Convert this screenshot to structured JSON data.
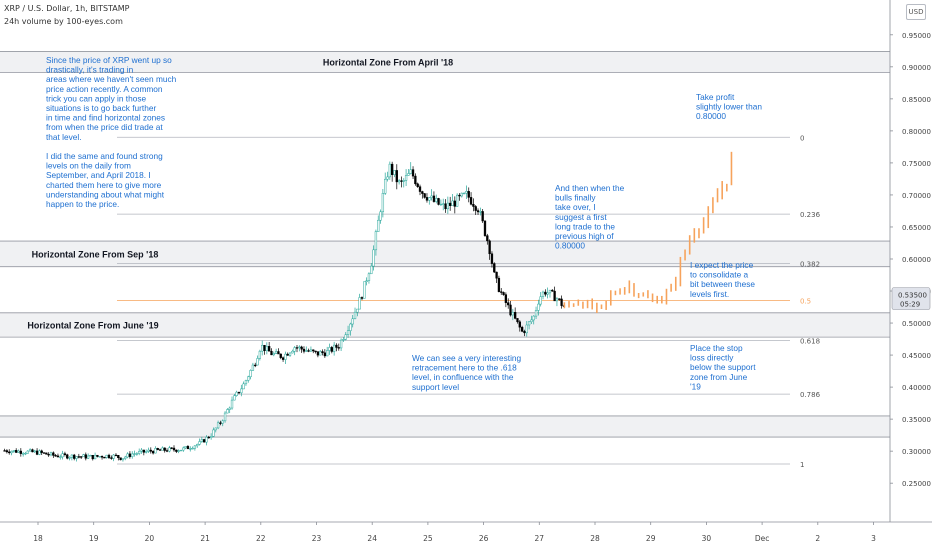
{
  "header": {
    "symbol_line": "XRP / U.S. Dollar, 1h, BITSTAMP",
    "indicator_line": "24h volume by 100-eyes.com",
    "currency_badge": "USD"
  },
  "colors": {
    "up": "#26a69a",
    "down": "#000000",
    "forecast": "#f6a35c",
    "annotation": "#1e6fd0",
    "zone_fill": "#f0f1f3",
    "zone_line": "#9598a1",
    "fib_line": "#b2b5be",
    "fib_half": "#f6a35c"
  },
  "chart_data": {
    "type": "candlestick",
    "x_ticks": [
      "18",
      "19",
      "20",
      "21",
      "22",
      "23",
      "24",
      "25",
      "26",
      "27",
      "28",
      "29",
      "30",
      "Dec",
      "2",
      "3"
    ],
    "y_ticks": [
      "0.25000",
      "0.30000",
      "0.35000",
      "0.40000",
      "0.45000",
      "0.50000",
      "0.55000",
      "0.60000",
      "0.65000",
      "0.70000",
      "0.75000",
      "0.80000",
      "0.85000",
      "0.90000",
      "0.95000"
    ],
    "ylim": [
      0.21,
      0.965
    ],
    "xlim": [
      17.35,
      3.6
    ],
    "current_price_label": "05:29",
    "current_price": 0.535,
    "price_path": [
      [
        17.4,
        0.301
      ],
      [
        18.0,
        0.298
      ],
      [
        18.3,
        0.293
      ],
      [
        18.7,
        0.292
      ],
      [
        19.0,
        0.291
      ],
      [
        19.2,
        0.293
      ],
      [
        19.4,
        0.292
      ],
      [
        19.5,
        0.289
      ],
      [
        19.7,
        0.296
      ],
      [
        20.0,
        0.3
      ],
      [
        20.3,
        0.302
      ],
      [
        20.6,
        0.303
      ],
      [
        20.9,
        0.312
      ],
      [
        21.1,
        0.325
      ],
      [
        21.3,
        0.348
      ],
      [
        21.5,
        0.38
      ],
      [
        21.7,
        0.405
      ],
      [
        21.9,
        0.44
      ],
      [
        22.0,
        0.465
      ],
      [
        22.2,
        0.452
      ],
      [
        22.4,
        0.448
      ],
      [
        22.6,
        0.463
      ],
      [
        22.8,
        0.458
      ],
      [
        23.0,
        0.452
      ],
      [
        23.2,
        0.455
      ],
      [
        23.4,
        0.465
      ],
      [
        23.6,
        0.5
      ],
      [
        23.8,
        0.54
      ],
      [
        24.0,
        0.6
      ],
      [
        24.15,
        0.68
      ],
      [
        24.3,
        0.745
      ],
      [
        24.5,
        0.715
      ],
      [
        24.7,
        0.735
      ],
      [
        24.9,
        0.705
      ],
      [
        25.1,
        0.69
      ],
      [
        25.3,
        0.68
      ],
      [
        25.5,
        0.69
      ],
      [
        25.7,
        0.7
      ],
      [
        25.9,
        0.68
      ],
      [
        26.1,
        0.62
      ],
      [
        26.2,
        0.57
      ],
      [
        26.35,
        0.54
      ],
      [
        26.5,
        0.515
      ],
      [
        26.7,
        0.485
      ],
      [
        26.9,
        0.51
      ],
      [
        27.0,
        0.54
      ],
      [
        27.1,
        0.55
      ],
      [
        27.3,
        0.54
      ],
      [
        27.45,
        0.525
      ]
    ],
    "forecast_path": [
      [
        27.45,
        0.525
      ],
      [
        27.7,
        0.535
      ],
      [
        27.9,
        0.525
      ],
      [
        28.1,
        0.52
      ],
      [
        28.3,
        0.545
      ],
      [
        28.6,
        0.56
      ],
      [
        28.8,
        0.545
      ],
      [
        29.0,
        0.535
      ],
      [
        29.2,
        0.54
      ],
      [
        29.4,
        0.555
      ],
      [
        29.55,
        0.6
      ],
      [
        29.8,
        0.65
      ],
      [
        30.0,
        0.66
      ],
      [
        30.2,
        0.7
      ],
      [
        30.4,
        0.73
      ],
      [
        30.5,
        0.78
      ]
    ],
    "fib_levels": [
      {
        "label": "0",
        "price": 0.79
      },
      {
        "label": "0.236",
        "price": 0.67
      },
      {
        "label": "0.382",
        "price": 0.593
      },
      {
        "label": "0.5",
        "price": 0.535
      },
      {
        "label": "0.618",
        "price": 0.473
      },
      {
        "label": "0.786",
        "price": 0.389
      },
      {
        "label": "1",
        "price": 0.28
      }
    ],
    "zones": [
      {
        "label": "Horizontal Zone From April '18",
        "top": 0.924,
        "bottom": 0.891
      },
      {
        "label": "Horizontal Zone From Sep '18",
        "top": 0.628,
        "bottom": 0.588
      },
      {
        "label": "Horizontal Zone From June '19",
        "top": 0.516,
        "bottom": 0.478
      },
      {
        "label": "",
        "top": 0.355,
        "bottom": 0.322
      }
    ]
  },
  "annotations": [
    {
      "name": "annotation-history-note",
      "text": "Since the price of XRP went up so drastically, it's trading in areas where we haven't seen much price action recently. A common trick you can apply in those situations is to go back further in time and find horizontal zones from when the price did trade at that level.\n\nI did the same and found strong levels on the daily from September, and April 2018. I charted them here to give more understanding about what might happen to the price."
    },
    {
      "name": "annotation-take-profit",
      "text": "Take profit slightly lower than 0.80000"
    },
    {
      "name": "annotation-bulls-take-over",
      "text": "And then when the bulls finally take over, I suggest a first long trade to the previous high of 0.80000"
    },
    {
      "name": "annotation-consolidate",
      "text": "I expect the price to consolidate a bit between these levels first."
    },
    {
      "name": "annotation-retracement",
      "text": "We can see a very interesting retracement here to the .618 level, in confluence with the support level"
    },
    {
      "name": "annotation-stop-loss",
      "text": "Place the stop loss directly below the support zone from June '19"
    }
  ]
}
